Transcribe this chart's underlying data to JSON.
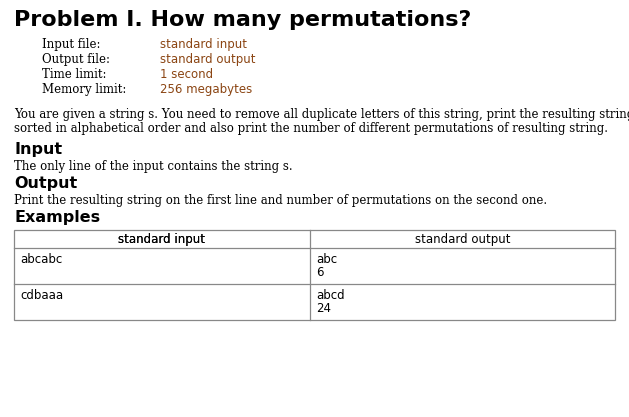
{
  "title": "Problem I. How many permutations?",
  "meta_labels": [
    "Input file:",
    "Output file:",
    "Time limit:",
    "Memory limit:"
  ],
  "meta_values": [
    "standard input",
    "standard output",
    "1 second",
    "256 megabytes"
  ],
  "description": "You are given a string s. You need to remove all duplicate letters of this string, print the resulting string\nsorted in alphabetical order and also print the number of different permutations of resulting string.",
  "section_input": "Input",
  "input_text": "The only line of the input contains the string s.",
  "section_output": "Output",
  "output_text": "Print the resulting string on the first line and number of permutations on the second one.",
  "section_examples": "Examples",
  "table_header_left": "standard input",
  "table_header_right": "standard output",
  "example_rows": [
    {
      "input": "abcabc",
      "output": "abc\n6"
    },
    {
      "input": "cdbaaa",
      "output": "abcd\n24"
    }
  ],
  "bg_color": "#ffffff",
  "text_color": "#000000",
  "title_color": "#000000",
  "section_color": "#000000",
  "mono_color": "#8B4513",
  "body_text_color": "#000000",
  "table_border_color": "#888888"
}
